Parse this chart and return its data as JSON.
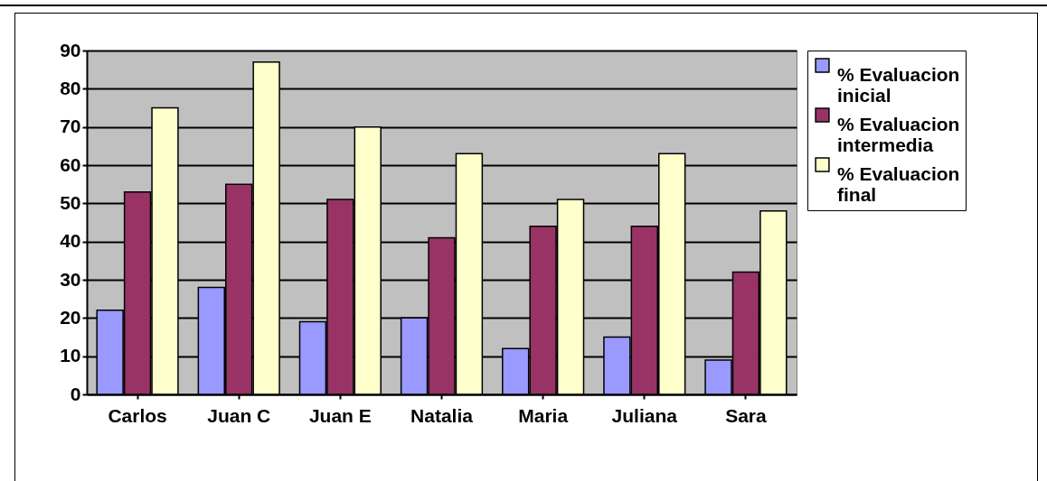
{
  "chart_data": {
    "type": "bar",
    "categories": [
      "Carlos",
      "Juan C",
      "Juan E",
      "Natalia",
      "Maria",
      "Juliana",
      "Sara"
    ],
    "series": [
      {
        "name": "% Evaluacion inicial",
        "color": "#9999ff",
        "values": [
          22,
          28,
          19,
          20,
          12,
          15,
          9
        ]
      },
      {
        "name": "% Evaluacion intermedia",
        "color": "#993366",
        "values": [
          53,
          55,
          51,
          41,
          44,
          44,
          32
        ]
      },
      {
        "name": "% Evaluacion final",
        "color": "#ffffcc",
        "values": [
          75,
          87,
          70,
          63,
          51,
          63,
          48
        ]
      }
    ],
    "ylim": [
      0,
      90
    ],
    "yticks": [
      0,
      10,
      20,
      30,
      40,
      50,
      60,
      70,
      80,
      90
    ],
    "grid": "y",
    "legend": "right"
  }
}
